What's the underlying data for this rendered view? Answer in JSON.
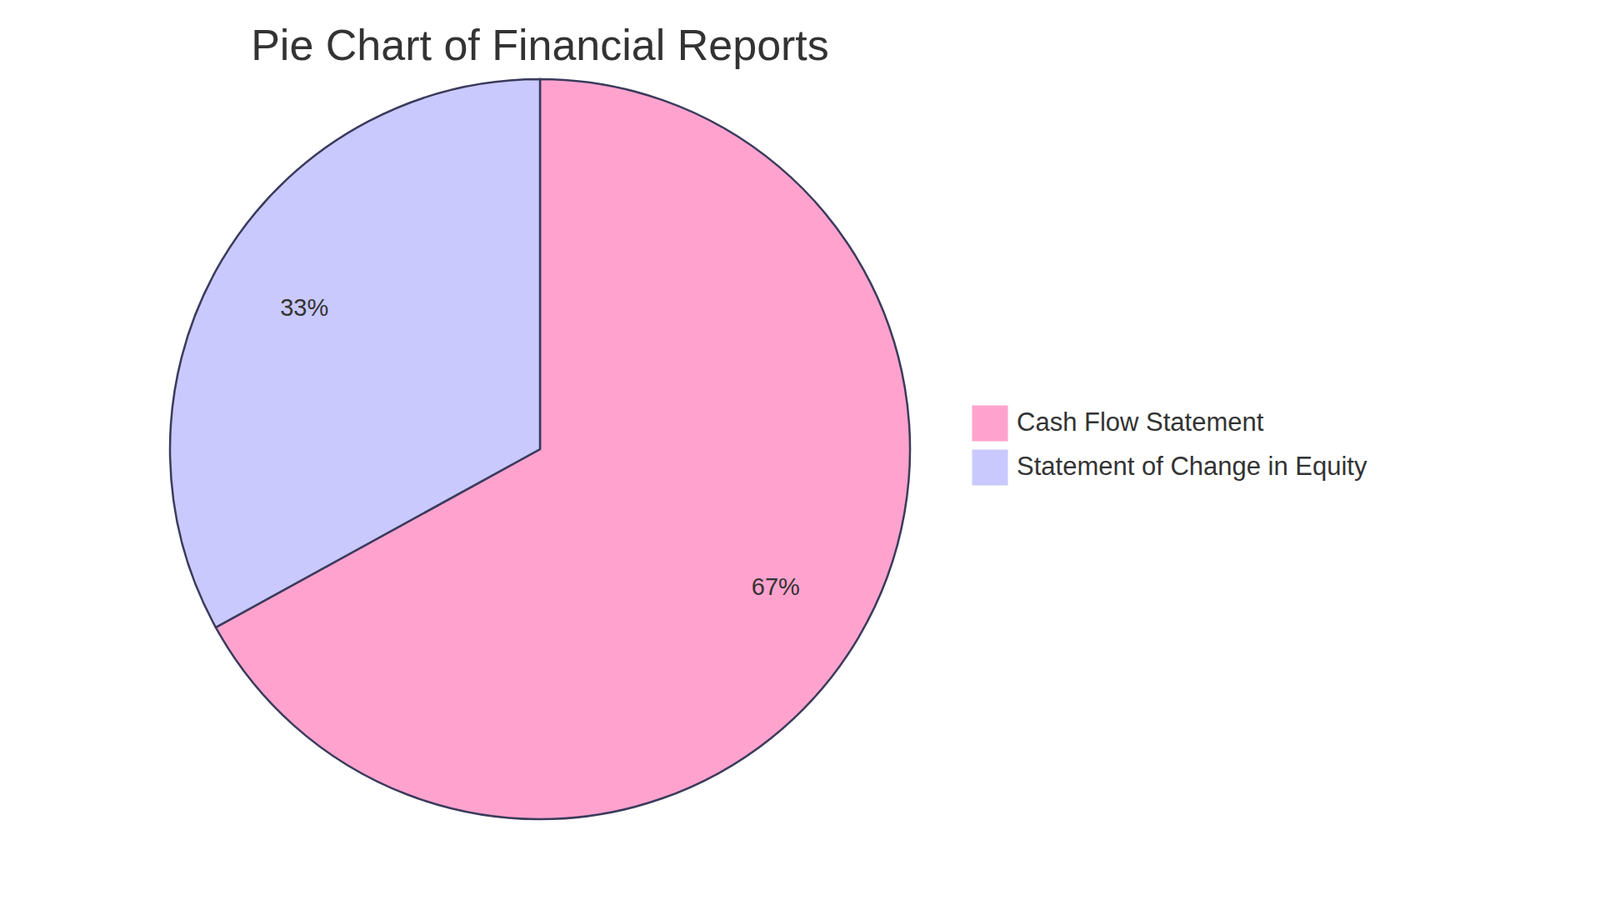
{
  "chart_data": {
    "type": "pie",
    "title": "Pie Chart of Financial Reports",
    "categories": [
      "Cash Flow Statement",
      "Statement of Change in Equity"
    ],
    "values": [
      67,
      33
    ],
    "value_labels": [
      "67%",
      "33%"
    ],
    "colors": [
      "#ffa3ce",
      "#c9c9fe"
    ],
    "data_labels": true,
    "legend": "right"
  }
}
